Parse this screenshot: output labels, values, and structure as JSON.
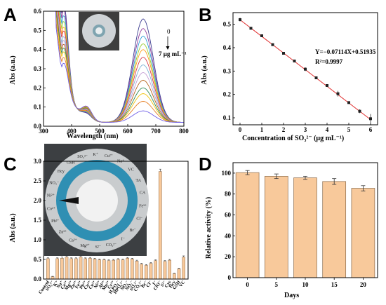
{
  "panels": {
    "a": "A",
    "b": "B",
    "c": "C",
    "d": "D"
  },
  "chart_data": [
    {
      "panel": "A",
      "type": "line",
      "xlabel": "Wavelength (nm)",
      "ylabel": "Abs (a.u.)",
      "xlim": [
        300,
        800
      ],
      "ylim": [
        0.0,
        0.6
      ],
      "xticks": [
        "300",
        "400",
        "500",
        "600",
        "700",
        "800"
      ],
      "yticks": [
        "0.0",
        "0.1",
        "0.2",
        "0.3",
        "0.4",
        "0.5",
        "0.6"
      ],
      "annotation_top": "0",
      "annotation_bottom": "7 μg mL⁻¹",
      "series": [
        {
          "peak_650": 0.54,
          "peak_370": 0.5
        },
        {
          "peak_650": 0.49,
          "peak_370": 0.47
        },
        {
          "peak_650": 0.45,
          "peak_370": 0.44
        },
        {
          "peak_650": 0.41,
          "peak_370": 0.41
        },
        {
          "peak_650": 0.38,
          "peak_370": 0.38
        },
        {
          "peak_650": 0.34,
          "peak_370": 0.36
        },
        {
          "peak_650": 0.3,
          "peak_370": 0.33
        },
        {
          "peak_650": 0.26,
          "peak_370": 0.31
        },
        {
          "peak_650": 0.22,
          "peak_370": 0.29
        },
        {
          "peak_650": 0.18,
          "peak_370": 0.27
        },
        {
          "peak_650": 0.15,
          "peak_370": 0.25
        },
        {
          "peak_650": 0.11,
          "peak_370": 0.22
        },
        {
          "peak_650": 0.06,
          "peak_370": 0.19
        }
      ]
    },
    {
      "panel": "B",
      "type": "scatter",
      "xlabel": "Concentration of SO₃²⁻ (μg mL⁻¹)",
      "ylabel": "Abs (a.u.)",
      "xlim": [
        0,
        6
      ],
      "ylim": [
        0.07,
        0.55
      ],
      "xticks": [
        "0",
        "1",
        "2",
        "3",
        "4",
        "5",
        "6"
      ],
      "yticks": [
        "0.1",
        "0.2",
        "0.3",
        "0.4",
        "0.5"
      ],
      "equation": "Y=−0.07114X+0.51935",
      "r2": "R²=0.9997",
      "x": [
        0,
        0.5,
        1,
        1.5,
        2,
        2.5,
        3,
        3.5,
        4,
        4.5,
        5,
        5.5,
        6
      ],
      "values": [
        0.52,
        0.483,
        0.451,
        0.413,
        0.376,
        0.343,
        0.308,
        0.271,
        0.238,
        0.203,
        0.165,
        0.128,
        0.096
      ],
      "errors": [
        0.008,
        0.005,
        0.004,
        0.005,
        0.004,
        0.004,
        0.008,
        0.005,
        0.005,
        0.012,
        0.005,
        0.008,
        0.02
      ]
    },
    {
      "panel": "C",
      "type": "bar",
      "ylabel": "Abs (a.u.)",
      "ylim": [
        0.0,
        3.0
      ],
      "yticks": [
        "0.0",
        "0.5",
        "1.0",
        "1.5",
        "2.0",
        "2.5",
        "3.0"
      ],
      "categories": [
        "Control",
        "SO₃²⁻",
        "K⁺",
        "Na⁺",
        "Ca²⁺",
        "Mg²⁺",
        "Zn²⁺",
        "Fe³⁺",
        "Pb²⁺",
        "Cu²⁺",
        "Co²⁺",
        "Ni²⁺",
        "Al³⁺",
        "Mn²⁺",
        "Cr³⁺",
        "H₂PO₄⁻",
        "HPO₄²⁻",
        "NO₃⁻",
        "NO₂⁻",
        "SO₄²⁻",
        "CO₃²⁻",
        "Br⁻",
        "Cl⁻",
        "I⁻",
        "ClO⁻",
        "S²⁻",
        "Cys",
        "Hcy",
        "GSH",
        "VC"
      ],
      "values": [
        0.52,
        0.06,
        0.52,
        0.53,
        0.56,
        0.52,
        0.52,
        0.56,
        0.52,
        0.53,
        0.51,
        0.49,
        0.49,
        0.47,
        0.48,
        0.5,
        0.49,
        0.53,
        0.51,
        0.46,
        0.38,
        0.35,
        0.4,
        0.47,
        2.74,
        0.45,
        0.48,
        0.14,
        0.26,
        0.56
      ],
      "errors": [
        0.02,
        0.01,
        0.02,
        0.03,
        0.03,
        0.02,
        0.02,
        0.03,
        0.02,
        0.02,
        0.02,
        0.02,
        0.02,
        0.02,
        0.02,
        0.02,
        0.02,
        0.02,
        0.02,
        0.02,
        0.02,
        0.02,
        0.02,
        0.02,
        0.06,
        0.02,
        0.02,
        0.01,
        0.02,
        0.03
      ],
      "photo_labels": [
        "GSH",
        "SO₃²⁻",
        "K⁺",
        "Cu²⁺",
        "Na⁺",
        "VC",
        "TA",
        "CA",
        "Fe³⁺",
        "Cl⁻",
        "Br⁻",
        "I⁻",
        "CO₃²⁻",
        "S²⁻",
        "Mg²⁺",
        "Ca²⁺",
        "Zn²⁺",
        "Pb²⁺",
        "Co²⁺",
        "Ni²⁺",
        "NO₃⁻",
        "Hcy"
      ]
    },
    {
      "panel": "D",
      "type": "bar",
      "xlabel": "Days",
      "ylabel": "Relative activity (%)",
      "ylim": [
        0,
        110
      ],
      "yticks": [
        "0",
        "20",
        "40",
        "60",
        "80",
        "100"
      ],
      "categories": [
        "0",
        "5",
        "10",
        "15",
        "20"
      ],
      "values": [
        100.5,
        97,
        95.5,
        92,
        85.5
      ],
      "errors": [
        2.0,
        2.2,
        1.5,
        2.8,
        2.5
      ]
    }
  ],
  "colors": {
    "bar_fill": "#f8c99b",
    "bar_stroke": "#8a6a4a",
    "fit_line": "#e03030",
    "marker": "#222222"
  }
}
